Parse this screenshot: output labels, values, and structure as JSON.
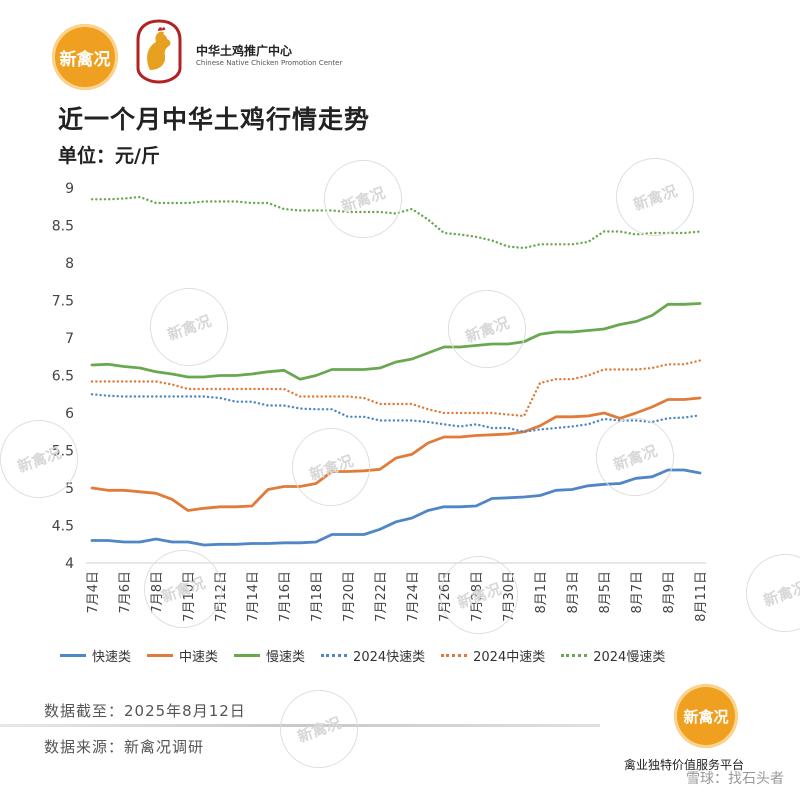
{
  "brand": {
    "logo_text": "新禽况",
    "org_cn": "中华土鸡推广中心",
    "org_en": "Chinese Native Chicken Promotion Center"
  },
  "header": {
    "title": "近一个月中华土鸡行情走势",
    "unit": "单位：元/斤"
  },
  "footer": {
    "cutoff": "数据截至：2025年8月12日",
    "source": "数据来源：新禽况调研",
    "tagline": "禽业独特价值服务平台",
    "platform": "雪球：找石头者"
  },
  "watermark_text": "新禽况",
  "colors": {
    "fast": "#4f86c6",
    "mid": "#e07b39",
    "slow": "#6aa84f",
    "brand": "#f0a020"
  },
  "chart_data": {
    "type": "line",
    "title": "近一个月中华土鸡行情走势",
    "ylabel": "元/斤",
    "ylim": [
      4,
      9
    ],
    "yticks": [
      "4",
      "4.5",
      "5",
      "5.5",
      "6",
      "6.5",
      "7",
      "7.5",
      "8",
      "8.5",
      "9"
    ],
    "grid": false,
    "legend_position": "bottom",
    "categories": [
      "7月4日",
      "7月5日",
      "7月6日",
      "7月7日",
      "7月8日",
      "7月9日",
      "7月10日",
      "7月11日",
      "7月12日",
      "7月13日",
      "7月14日",
      "7月15日",
      "7月16日",
      "7月17日",
      "7月18日",
      "7月19日",
      "7月20日",
      "7月21日",
      "7月22日",
      "7月23日",
      "7月24日",
      "7月25日",
      "7月26日",
      "7月27日",
      "7月28日",
      "7月29日",
      "7月30日",
      "7月31日",
      "8月1日",
      "8月2日",
      "8月3日",
      "8月4日",
      "8月5日",
      "8月6日",
      "8月7日",
      "8月8日",
      "8月9日",
      "8月10日",
      "8月11日"
    ],
    "xtick_labels": [
      "7月4日",
      "7月6日",
      "7月8日",
      "7月10日",
      "7月12日",
      "7月14日",
      "7月16日",
      "7月18日",
      "7月20日",
      "7月22日",
      "7月24日",
      "7月26日",
      "7月28日",
      "7月30日",
      "8月1日",
      "8月3日",
      "8月5日",
      "8月7日",
      "8月9日",
      "8月11日"
    ],
    "series": [
      {
        "name": "快速类",
        "style": "solid",
        "color": "#4f86c6",
        "values": [
          4.3,
          4.3,
          4.28,
          4.28,
          4.32,
          4.28,
          4.28,
          4.24,
          4.25,
          4.25,
          4.26,
          4.26,
          4.27,
          4.27,
          4.28,
          4.38,
          4.38,
          4.38,
          4.45,
          4.55,
          4.6,
          4.7,
          4.75,
          4.75,
          4.76,
          4.86,
          4.87,
          4.88,
          4.9,
          4.97,
          4.98,
          5.03,
          5.05,
          5.06,
          5.13,
          5.15,
          5.24,
          5.24,
          5.2
        ]
      },
      {
        "name": "中速类",
        "style": "solid",
        "color": "#e07b39",
        "values": [
          5.0,
          4.97,
          4.97,
          4.95,
          4.93,
          4.85,
          4.7,
          4.73,
          4.75,
          4.75,
          4.76,
          4.98,
          5.02,
          5.02,
          5.06,
          5.22,
          5.22,
          5.23,
          5.25,
          5.4,
          5.45,
          5.6,
          5.68,
          5.68,
          5.7,
          5.71,
          5.72,
          5.75,
          5.83,
          5.95,
          5.95,
          5.96,
          6.0,
          5.93,
          6.0,
          6.08,
          6.18,
          6.18,
          6.2
        ]
      },
      {
        "name": "慢速类",
        "style": "solid",
        "color": "#6aa84f",
        "values": [
          6.64,
          6.65,
          6.62,
          6.6,
          6.55,
          6.52,
          6.48,
          6.48,
          6.5,
          6.5,
          6.52,
          6.55,
          6.57,
          6.45,
          6.5,
          6.58,
          6.58,
          6.58,
          6.6,
          6.68,
          6.72,
          6.8,
          6.88,
          6.88,
          6.9,
          6.92,
          6.92,
          6.95,
          7.05,
          7.08,
          7.08,
          7.1,
          7.12,
          7.18,
          7.22,
          7.3,
          7.45,
          7.45,
          7.46
        ]
      },
      {
        "name": "2024快速类",
        "style": "dotted",
        "color": "#4f86c6",
        "values": [
          6.25,
          6.23,
          6.22,
          6.22,
          6.22,
          6.22,
          6.22,
          6.22,
          6.2,
          6.15,
          6.15,
          6.1,
          6.1,
          6.06,
          6.05,
          6.05,
          5.95,
          5.95,
          5.9,
          5.9,
          5.9,
          5.88,
          5.85,
          5.82,
          5.85,
          5.8,
          5.8,
          5.75,
          5.78,
          5.8,
          5.82,
          5.85,
          5.92,
          5.9,
          5.9,
          5.88,
          5.93,
          5.94,
          5.97
        ]
      },
      {
        "name": "2024中速类",
        "style": "dotted",
        "color": "#e07b39",
        "values": [
          6.42,
          6.42,
          6.42,
          6.42,
          6.42,
          6.38,
          6.32,
          6.32,
          6.32,
          6.32,
          6.32,
          6.32,
          6.32,
          6.22,
          6.22,
          6.22,
          6.22,
          6.2,
          6.12,
          6.12,
          6.12,
          6.05,
          6.0,
          6.0,
          6.0,
          6.0,
          5.98,
          5.96,
          6.4,
          6.45,
          6.45,
          6.5,
          6.58,
          6.58,
          6.58,
          6.6,
          6.65,
          6.65,
          6.7
        ]
      },
      {
        "name": "2024慢速类",
        "style": "dotted",
        "color": "#6aa84f",
        "values": [
          8.85,
          8.85,
          8.86,
          8.88,
          8.8,
          8.8,
          8.8,
          8.82,
          8.82,
          8.82,
          8.8,
          8.8,
          8.72,
          8.7,
          8.7,
          8.7,
          8.68,
          8.68,
          8.68,
          8.66,
          8.72,
          8.58,
          8.4,
          8.38,
          8.35,
          8.3,
          8.22,
          8.2,
          8.25,
          8.25,
          8.25,
          8.28,
          8.42,
          8.42,
          8.38,
          8.4,
          8.4,
          8.4,
          8.42
        ]
      }
    ]
  }
}
